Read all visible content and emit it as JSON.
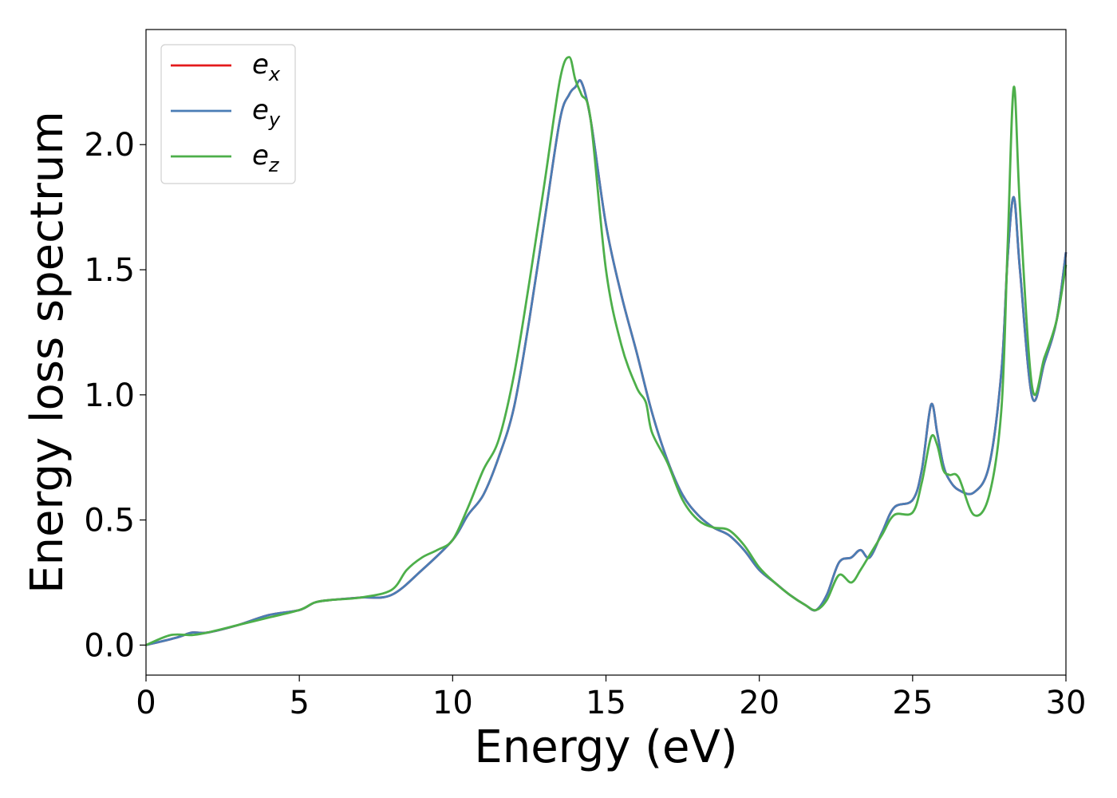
{
  "chart_data": {
    "type": "line",
    "xlabel": "Energy (eV)",
    "ylabel": "Energy loss spectrum",
    "xlim": [
      0,
      30
    ],
    "ylim": [
      -0.12,
      2.46
    ],
    "xticks": [
      0,
      5,
      10,
      15,
      20,
      25,
      30
    ],
    "xtick_labels": [
      "0",
      "5",
      "10",
      "15",
      "20",
      "25",
      "30"
    ],
    "yticks": [
      0.0,
      0.5,
      1.0,
      1.5,
      2.0
    ],
    "ytick_labels": [
      "0.0",
      "0.5",
      "1.0",
      "1.5",
      "2.0"
    ],
    "grid": false,
    "legend_position": "top-left",
    "series": [
      {
        "name": "e_x",
        "label_base": "e",
        "label_sub": "x",
        "color": "#e41a1c",
        "x": [
          0,
          1,
          1.5,
          2,
          3,
          4,
          5,
          5.5,
          6,
          7,
          8,
          9,
          10,
          10.5,
          11,
          11.5,
          12,
          12.5,
          13,
          13.5,
          13.8,
          14,
          14.2,
          14.5,
          15,
          15.5,
          16,
          16.5,
          17,
          17.5,
          18,
          18.5,
          19,
          19.5,
          20,
          20.5,
          21,
          21.5,
          21.85,
          22.2,
          22.6,
          23,
          23.3,
          23.6,
          24,
          24.4,
          25,
          25.3,
          25.6,
          25.8,
          26,
          26.2,
          26.5,
          27,
          27.5,
          27.9,
          28.1,
          28.3,
          28.5,
          28.9,
          29.3,
          29.7,
          30
        ],
        "y": [
          0.0,
          0.03,
          0.05,
          0.05,
          0.08,
          0.12,
          0.14,
          0.17,
          0.18,
          0.19,
          0.2,
          0.3,
          0.42,
          0.52,
          0.6,
          0.75,
          0.95,
          1.3,
          1.7,
          2.1,
          2.2,
          2.23,
          2.25,
          2.1,
          1.68,
          1.4,
          1.17,
          0.93,
          0.74,
          0.6,
          0.52,
          0.47,
          0.44,
          0.38,
          0.3,
          0.25,
          0.2,
          0.16,
          0.14,
          0.2,
          0.33,
          0.35,
          0.38,
          0.35,
          0.45,
          0.55,
          0.58,
          0.7,
          0.96,
          0.85,
          0.72,
          0.66,
          0.62,
          0.61,
          0.72,
          1.1,
          1.55,
          1.79,
          1.5,
          0.99,
          1.13,
          1.3,
          1.57
        ]
      },
      {
        "name": "e_y",
        "label_base": "e",
        "label_sub": "y",
        "color": "#4a7db5",
        "x": [
          0,
          1,
          1.5,
          2,
          3,
          4,
          5,
          5.5,
          6,
          7,
          8,
          9,
          10,
          10.5,
          11,
          11.5,
          12,
          12.5,
          13,
          13.5,
          13.8,
          14,
          14.2,
          14.5,
          15,
          15.5,
          16,
          16.5,
          17,
          17.5,
          18,
          18.5,
          19,
          19.5,
          20,
          20.5,
          21,
          21.5,
          21.85,
          22.2,
          22.6,
          23,
          23.3,
          23.6,
          24,
          24.4,
          25,
          25.3,
          25.6,
          25.8,
          26,
          26.2,
          26.5,
          27,
          27.5,
          27.9,
          28.1,
          28.3,
          28.5,
          28.9,
          29.3,
          29.7,
          30
        ],
        "y": [
          0.0,
          0.03,
          0.05,
          0.05,
          0.08,
          0.12,
          0.14,
          0.17,
          0.18,
          0.19,
          0.2,
          0.3,
          0.42,
          0.52,
          0.6,
          0.75,
          0.95,
          1.3,
          1.7,
          2.1,
          2.2,
          2.23,
          2.25,
          2.1,
          1.68,
          1.4,
          1.17,
          0.93,
          0.74,
          0.6,
          0.52,
          0.47,
          0.44,
          0.38,
          0.3,
          0.25,
          0.2,
          0.16,
          0.14,
          0.2,
          0.33,
          0.35,
          0.38,
          0.35,
          0.45,
          0.55,
          0.58,
          0.7,
          0.96,
          0.85,
          0.72,
          0.66,
          0.62,
          0.61,
          0.72,
          1.1,
          1.55,
          1.79,
          1.5,
          0.99,
          1.13,
          1.3,
          1.57
        ]
      },
      {
        "name": "e_z",
        "label_base": "e",
        "label_sub": "z",
        "color": "#4daf4a",
        "x": [
          0,
          0.8,
          1.5,
          2,
          3,
          4,
          5,
          5.5,
          6,
          7,
          8,
          8.5,
          9,
          9.5,
          10,
          10.5,
          11,
          11.5,
          12,
          12.5,
          13,
          13.5,
          13.8,
          14,
          14.2,
          14.5,
          15,
          15.5,
          16,
          16.3,
          16.5,
          17,
          17.5,
          18,
          18.5,
          19,
          19.5,
          20,
          20.5,
          21,
          21.5,
          21.85,
          22.2,
          22.6,
          23,
          23.3,
          23.6,
          24,
          24.4,
          25,
          25.3,
          25.6,
          25.8,
          26,
          26.2,
          26.5,
          27,
          27.5,
          27.9,
          28.1,
          28.3,
          28.5,
          28.9,
          29.3,
          29.7,
          30
        ],
        "y": [
          0.0,
          0.04,
          0.04,
          0.05,
          0.08,
          0.11,
          0.14,
          0.17,
          0.18,
          0.19,
          0.22,
          0.3,
          0.35,
          0.38,
          0.42,
          0.55,
          0.7,
          0.82,
          1.08,
          1.45,
          1.85,
          2.26,
          2.35,
          2.26,
          2.2,
          2.1,
          1.5,
          1.2,
          1.03,
          0.97,
          0.85,
          0.73,
          0.58,
          0.5,
          0.47,
          0.46,
          0.4,
          0.31,
          0.25,
          0.2,
          0.16,
          0.14,
          0.18,
          0.28,
          0.25,
          0.3,
          0.36,
          0.44,
          0.52,
          0.53,
          0.65,
          0.83,
          0.8,
          0.7,
          0.68,
          0.67,
          0.52,
          0.6,
          0.95,
          1.6,
          2.23,
          1.75,
          1.03,
          1.15,
          1.3,
          1.52
        ]
      }
    ]
  }
}
